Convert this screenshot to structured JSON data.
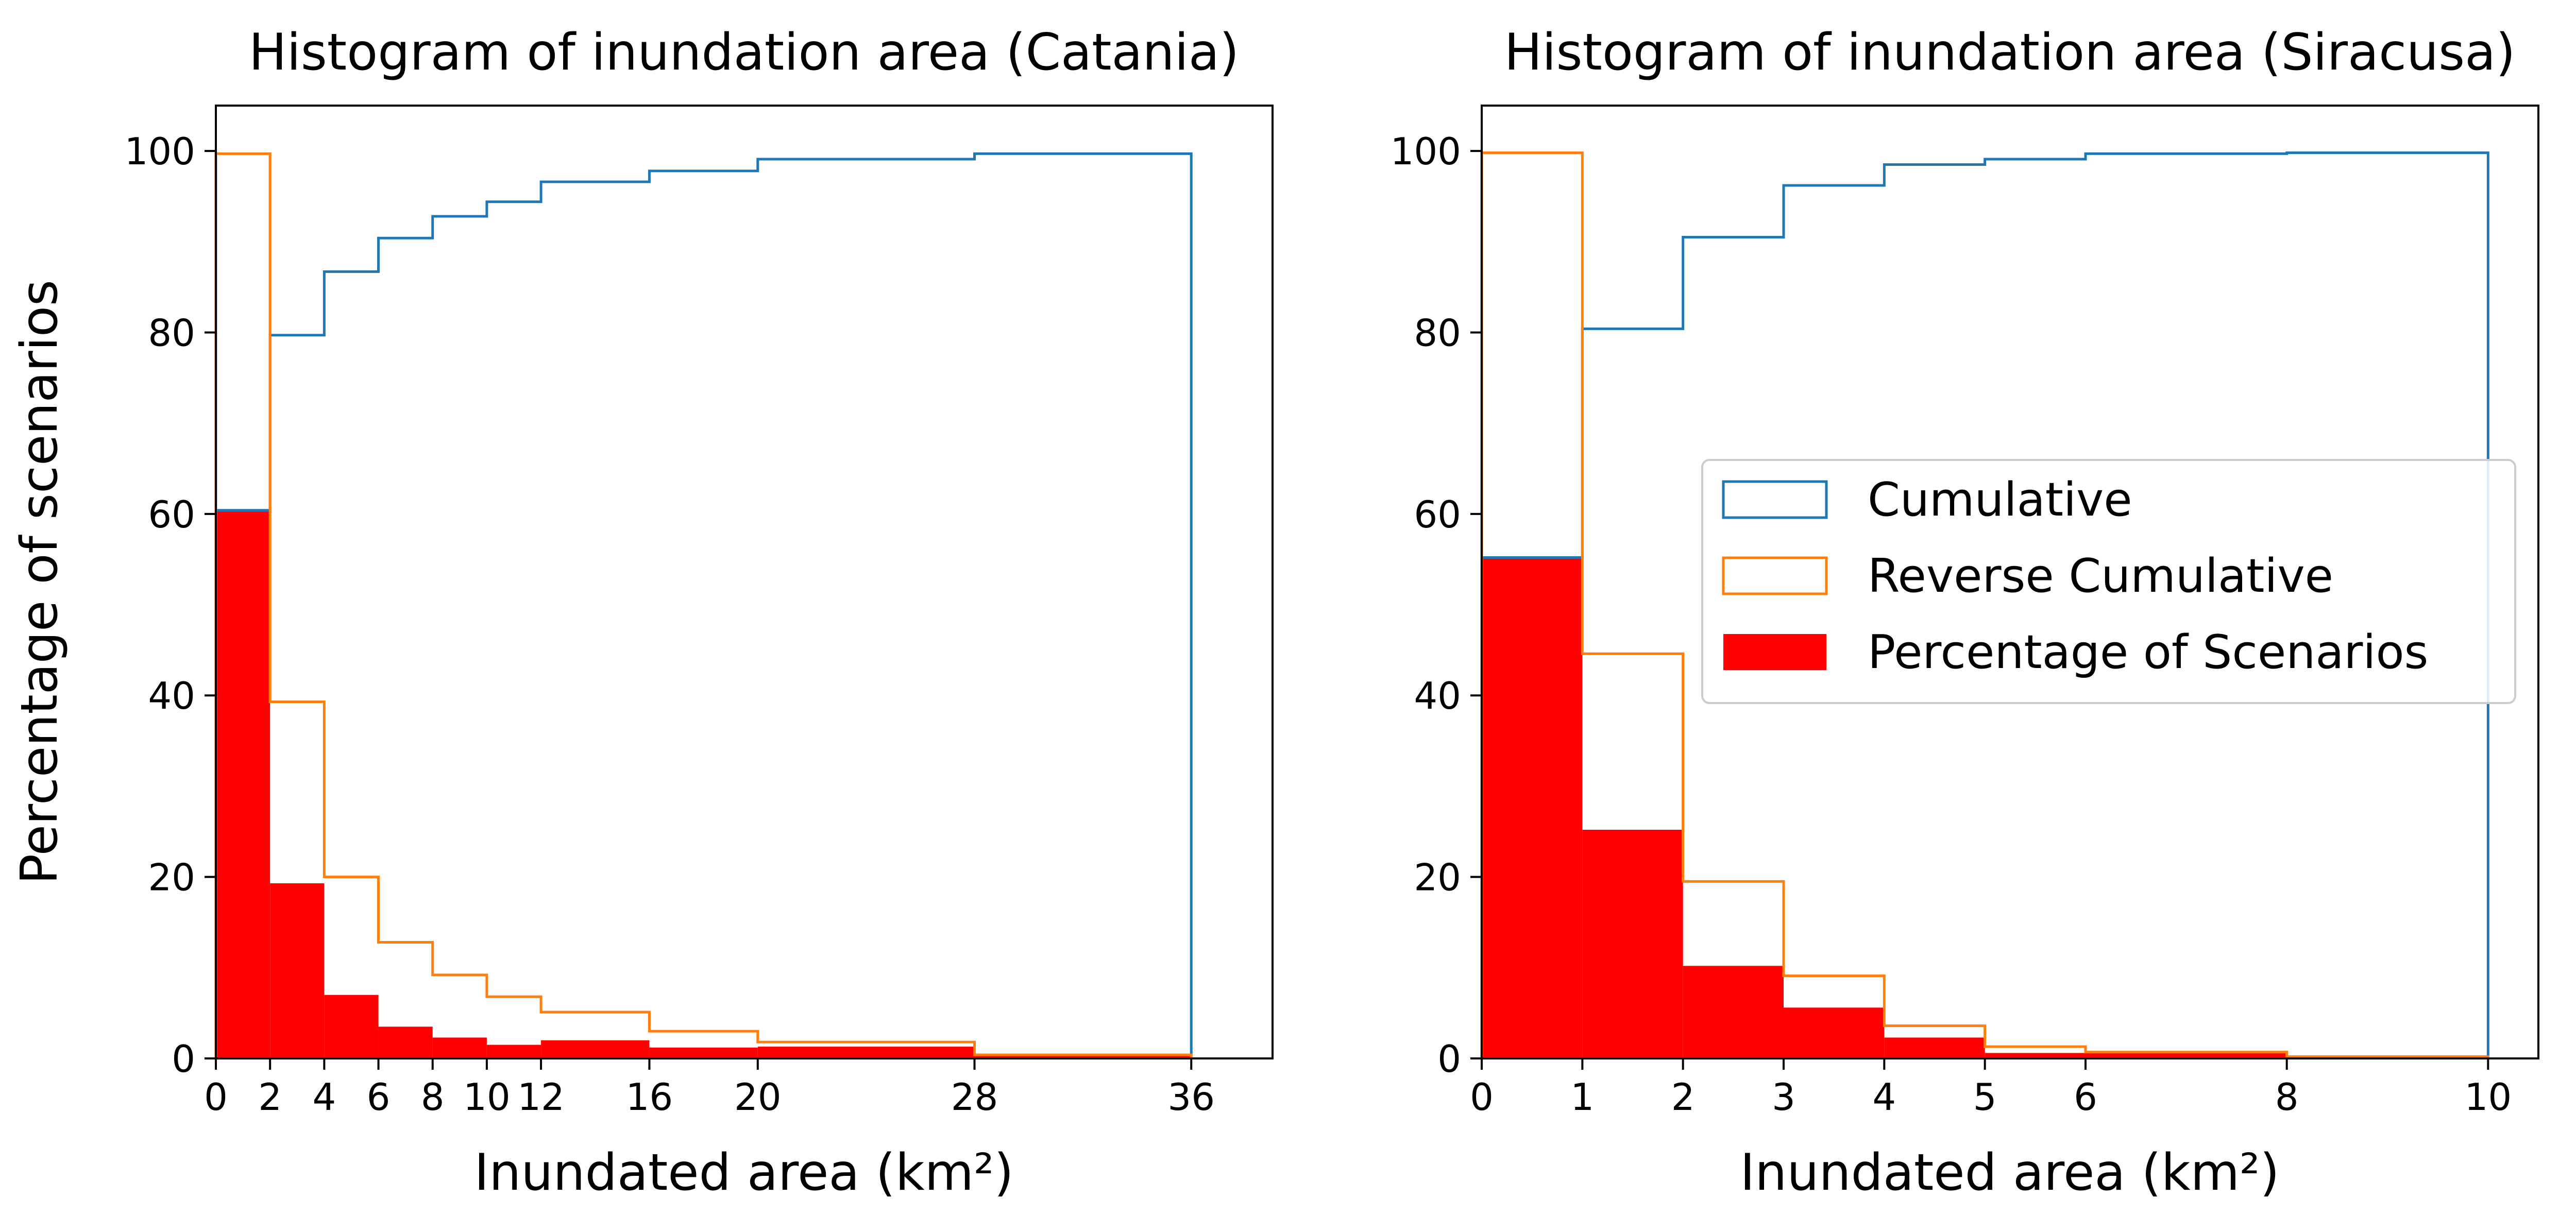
{
  "colors": {
    "cumulative": "#1f77b4",
    "reverse_cumulative": "#ff7f0e",
    "percentage": "#ff0000",
    "axes": "#000000",
    "background": "#ffffff"
  },
  "shared": {
    "ylabel": "Percentage of scenarios"
  },
  "legend": {
    "placement": "center-right of second panel",
    "entries": [
      {
        "label": "Cumulative",
        "style": "outline",
        "color_key": "cumulative"
      },
      {
        "label": "Reverse Cumulative",
        "style": "outline",
        "color_key": "reverse_cumulative"
      },
      {
        "label": "Percentage of Scenarios",
        "style": "filled",
        "color_key": "percentage"
      }
    ]
  },
  "chart_data": [
    {
      "type": "histogram",
      "title": "Histogram of inundation area (Catania)",
      "xlabel": "Inundated area (km²)",
      "ylabel": "Percentage of scenarios",
      "xlim": [
        0,
        39
      ],
      "ylim": [
        0,
        105
      ],
      "xticks": [
        0,
        2,
        4,
        6,
        8,
        10,
        12,
        16,
        20,
        28,
        36
      ],
      "xtick_labels": [
        "0",
        "2",
        "4",
        "6",
        "8",
        "10",
        "12",
        "16",
        "20",
        "28",
        "36"
      ],
      "yticks": [
        0,
        20,
        40,
        60,
        80,
        100
      ],
      "bin_edges": [
        0,
        2,
        4,
        6,
        8,
        10,
        12,
        16,
        20,
        28,
        36
      ],
      "series": [
        {
          "name": "Percentage of Scenarios",
          "kind": "filled",
          "values": [
            60.4,
            19.3,
            7.0,
            3.5,
            2.3,
            1.5,
            2.0,
            1.2,
            1.3,
            0.3
          ]
        },
        {
          "name": "Cumulative",
          "kind": "step",
          "values": [
            60.4,
            79.7,
            86.7,
            90.4,
            92.8,
            94.4,
            96.6,
            97.8,
            99.1,
            99.7
          ]
        },
        {
          "name": "Reverse Cumulative",
          "kind": "step",
          "values": [
            99.7,
            39.3,
            20.0,
            12.8,
            9.2,
            6.8,
            5.1,
            3.0,
            1.8,
            0.4
          ]
        }
      ]
    },
    {
      "type": "histogram",
      "title": "Histogram of inundation area (Siracusa)",
      "xlabel": "Inundated area (km²)",
      "ylabel": "",
      "xlim": [
        0,
        10.5
      ],
      "ylim": [
        0,
        105
      ],
      "xticks": [
        0,
        1,
        2,
        3,
        4,
        5,
        6,
        8,
        10
      ],
      "xtick_labels": [
        "0",
        "1",
        "2",
        "3",
        "4",
        "5",
        "6",
        "8",
        "10"
      ],
      "yticks": [
        0,
        20,
        40,
        60,
        80,
        100
      ],
      "bin_edges": [
        0,
        1,
        2,
        3,
        4,
        5,
        6,
        8,
        10
      ],
      "series": [
        {
          "name": "Percentage of Scenarios",
          "kind": "filled",
          "values": [
            55.2,
            25.2,
            10.2,
            5.6,
            2.3,
            0.6,
            0.6,
            0.1
          ]
        },
        {
          "name": "Cumulative",
          "kind": "step",
          "values": [
            55.2,
            80.4,
            90.5,
            96.2,
            98.5,
            99.1,
            99.7,
            99.8
          ]
        },
        {
          "name": "Reverse Cumulative",
          "kind": "step",
          "values": [
            99.8,
            44.6,
            19.5,
            9.1,
            3.6,
            1.3,
            0.7,
            0.2
          ]
        }
      ]
    }
  ]
}
